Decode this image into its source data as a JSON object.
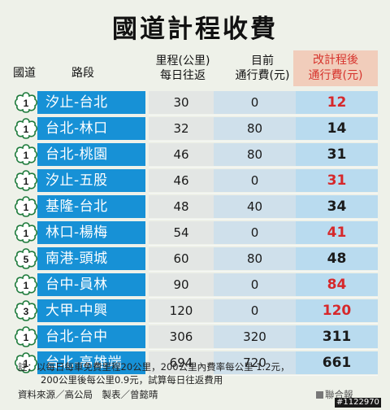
{
  "title": "國道計程收費",
  "headers": {
    "road": "國道",
    "section": "路段",
    "distance_l1": "里程(公里)",
    "distance_l2": "每日往返",
    "current_l1": "目前",
    "current_l2": "通行費(元)",
    "new_l1": "改計程後",
    "new_l2": "通行費(元)"
  },
  "colors": {
    "segment_bg": "#1791d6",
    "highlight_red": "#d6282b",
    "new_header_bg": "#f1cdbb"
  },
  "rows": [
    {
      "road": "1",
      "section": "汐止-台北",
      "distance": "30",
      "current_fee": "0",
      "new_fee": "12",
      "highlight": true
    },
    {
      "road": "1",
      "section": "台北-林口",
      "distance": "32",
      "current_fee": "80",
      "new_fee": "14",
      "highlight": false
    },
    {
      "road": "1",
      "section": "台北-桃園",
      "distance": "46",
      "current_fee": "80",
      "new_fee": "31",
      "highlight": false
    },
    {
      "road": "1",
      "section": "汐止-五股",
      "distance": "46",
      "current_fee": "0",
      "new_fee": "31",
      "highlight": true
    },
    {
      "road": "1",
      "section": "基隆-台北",
      "distance": "48",
      "current_fee": "40",
      "new_fee": "34",
      "highlight": false
    },
    {
      "road": "1",
      "section": "林口-楊梅",
      "distance": "54",
      "current_fee": "0",
      "new_fee": "41",
      "highlight": true
    },
    {
      "road": "5",
      "section": "南港-頭城",
      "distance": "60",
      "current_fee": "80",
      "new_fee": "48",
      "highlight": false
    },
    {
      "road": "1",
      "section": "台中-員林",
      "distance": "90",
      "current_fee": "0",
      "new_fee": "84",
      "highlight": true
    },
    {
      "road": "3",
      "section": "大甲-中興",
      "distance": "120",
      "current_fee": "0",
      "new_fee": "120",
      "highlight": true
    },
    {
      "road": "1",
      "section": "台北-台中",
      "distance": "306",
      "current_fee": "320",
      "new_fee": "311",
      "highlight": false
    },
    {
      "road": "1",
      "section": "台北-高雄端",
      "distance": "694",
      "current_fee": "720",
      "new_fee": "661",
      "highlight": false
    }
  ],
  "notes": {
    "line1": "註：以每日每車免費里程20公里，200公里內費率每公里 1.2元，",
    "line2": "200公里後每公里0.9元，試算每日往返費用",
    "credit": "資料來源／高公局　製表／曾懿晴",
    "brand": "聯合報",
    "code": "#1122970"
  }
}
